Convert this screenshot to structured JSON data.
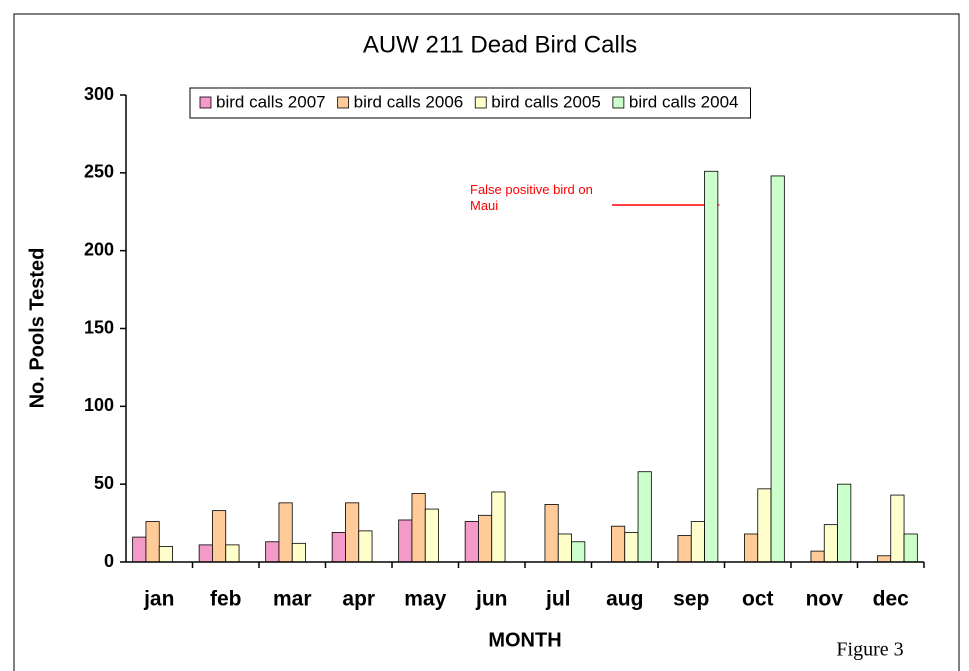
{
  "chart_data": {
    "type": "bar",
    "title": "AUW 211 Dead Bird Calls",
    "x_label": "MONTH",
    "y_label": "No. Pools Tested",
    "categories": [
      "jan",
      "feb",
      "mar",
      "apr",
      "may",
      "jun",
      "jul",
      "aug",
      "sep",
      "oct",
      "nov",
      "dec"
    ],
    "series": [
      {
        "name": "bird calls 2007",
        "color": "#f49ac9",
        "values": [
          16,
          11,
          13,
          19,
          27,
          26,
          0,
          0,
          0,
          0,
          0,
          0
        ]
      },
      {
        "name": "bird calls 2006",
        "color": "#ffcc99",
        "values": [
          26,
          33,
          38,
          38,
          44,
          30,
          37,
          23,
          17,
          18,
          7,
          4
        ]
      },
      {
        "name": "bird calls 2005",
        "color": "#ffffcc",
        "values": [
          10,
          11,
          12,
          20,
          34,
          45,
          18,
          19,
          26,
          47,
          24,
          43
        ]
      },
      {
        "name": "bird calls 2004",
        "color": "#ccffcc",
        "values": [
          0,
          0,
          0,
          0,
          0,
          0,
          13,
          58,
          251,
          248,
          50,
          18
        ]
      }
    ],
    "ylim": [
      0,
      300
    ],
    "yticks": [
      0,
      50,
      100,
      150,
      200,
      250,
      300
    ],
    "legend": "top",
    "annotation": "False positive bird on Maui",
    "figure_label": "Figure 3"
  }
}
